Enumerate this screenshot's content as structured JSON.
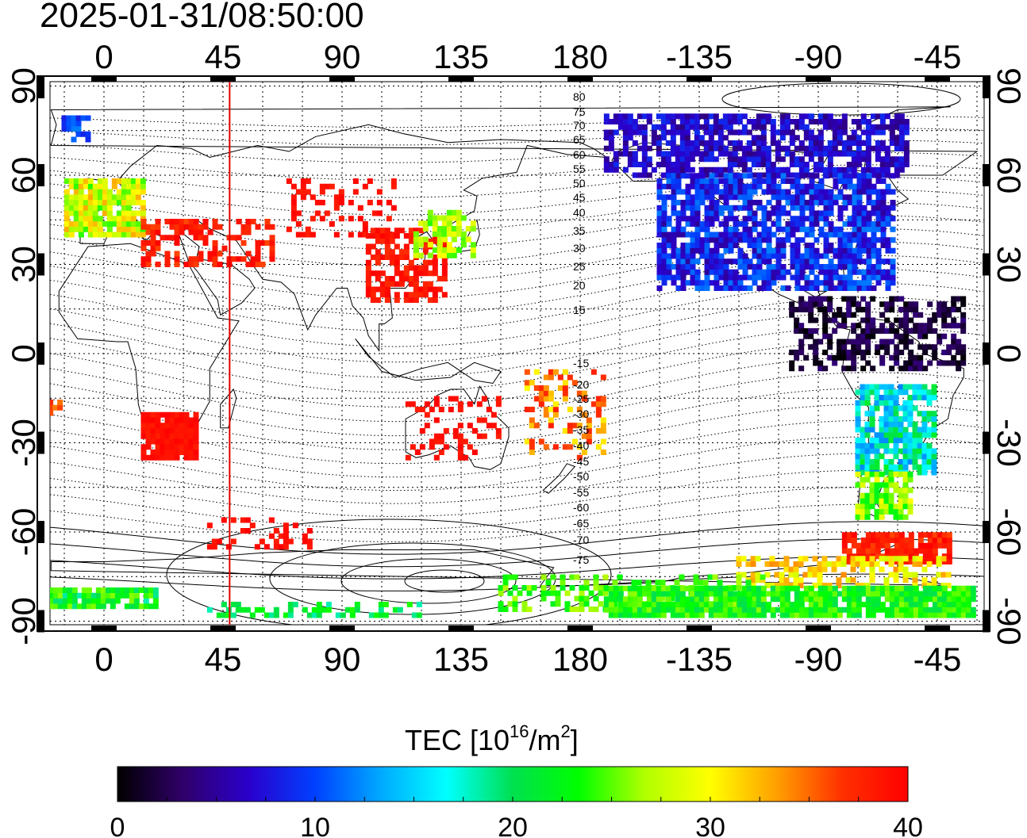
{
  "title": "2025-01-31/08:50:00",
  "map": {
    "top_lon_labels": [
      "0",
      "45",
      "90",
      "135",
      "180",
      "-135",
      "-90",
      "-45"
    ],
    "bottom_lon_labels": [
      "0",
      "45",
      "90",
      "135",
      "180",
      "-135",
      "-90",
      "-45"
    ],
    "left_lat_labels": [
      "90",
      "60",
      "30",
      "0",
      "-30",
      "-60",
      "-90"
    ],
    "right_lat_labels": [
      "90",
      "60",
      "30",
      "0",
      "-30",
      "-60",
      "-90"
    ],
    "contour_labels_north": [
      "80",
      "75",
      "70",
      "65",
      "60",
      "55",
      "50",
      "45",
      "40",
      "35",
      "30",
      "25",
      "20",
      "15"
    ],
    "contour_labels_south": [
      "-15",
      "-20",
      "-25",
      "-30",
      "-35",
      "-40",
      "-45",
      "-50",
      "-55",
      "-60",
      "-65",
      "-70",
      "-75"
    ],
    "sun_marker_lon": 47.5
  },
  "colorbar": {
    "label_main": "TEC  [10",
    "label_sup1": "16",
    "label_mid": "/m",
    "label_sup2": "2",
    "label_end": "]",
    "min": 0,
    "max": 40,
    "tick_labels": [
      "0",
      "10",
      "20",
      "30",
      "40"
    ],
    "gradient": [
      "#000000",
      "#30006a",
      "#2a00cc",
      "#0040ff",
      "#00aaff",
      "#00ffff",
      "#00e050",
      "#00ff00",
      "#b0ff00",
      "#ffff00",
      "#ffa000",
      "#ff3000",
      "#ff0000"
    ]
  }
}
